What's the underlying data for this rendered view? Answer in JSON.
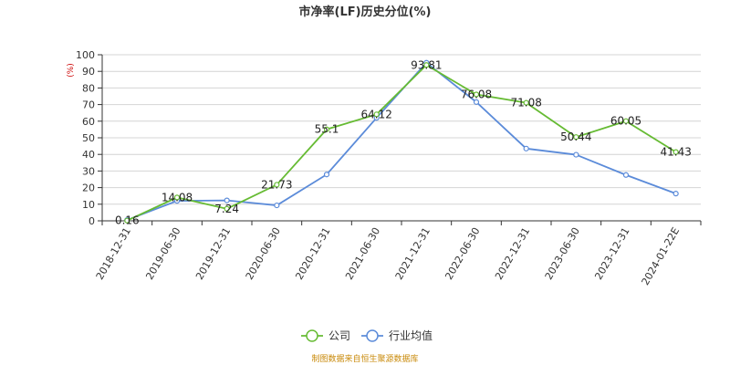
{
  "chart_data": {
    "type": "line",
    "title": "市净率(LF)历史分位(%)",
    "ylabel": "(%)",
    "ylim": [
      0,
      100
    ],
    "y_ticks": [
      0,
      10,
      20,
      30,
      40,
      50,
      60,
      70,
      80,
      90,
      100
    ],
    "grid": true,
    "legend_position": "bottom",
    "categories": [
      "2018-12-31",
      "2019-06-30",
      "2019-12-31",
      "2020-06-30",
      "2020-12-31",
      "2021-06-30",
      "2021-12-31",
      "2022-06-30",
      "2022-12-31",
      "2023-06-30",
      "2023-12-31",
      "2024-01-22E"
    ],
    "series": [
      {
        "name": "公司",
        "color": "#66bb33",
        "values": [
          0.16,
          14.08,
          7.24,
          21.73,
          55.1,
          64.12,
          93.81,
          76.08,
          71.08,
          50.44,
          60.05,
          41.43
        ],
        "labels": [
          "0.16",
          "14.08",
          "7.24",
          "21.73",
          "55.1",
          "64.12",
          "93.81",
          "76.08",
          "71.08",
          "50.44",
          "60.05",
          "41.43"
        ]
      },
      {
        "name": "行业均值",
        "color": "#5b8bd9",
        "values": [
          0.5,
          12.0,
          12.3,
          9.3,
          27.9,
          62.0,
          95.2,
          71.5,
          43.5,
          39.8,
          27.6,
          16.4
        ]
      }
    ]
  },
  "source_text": "制图数据来自恒生聚源数据库"
}
